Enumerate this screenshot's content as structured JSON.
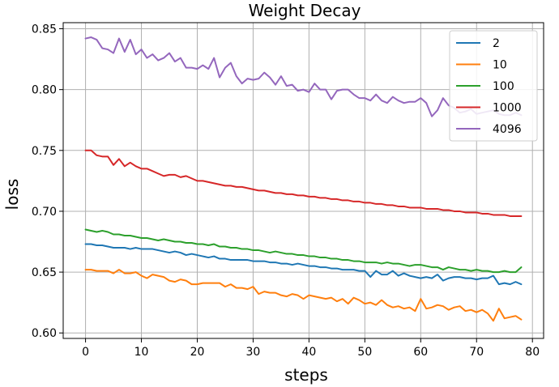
{
  "chart_data": {
    "type": "line",
    "title": "Weight Decay",
    "xlabel": "steps",
    "ylabel": "loss",
    "xlim": [
      -4,
      82
    ],
    "ylim": [
      0.5955,
      0.855
    ],
    "xticks": [
      0,
      10,
      20,
      30,
      40,
      50,
      60,
      70,
      80
    ],
    "yticks": [
      0.6,
      0.65,
      0.7,
      0.75,
      0.8,
      0.85
    ],
    "ytick_labels": [
      "0.60",
      "0.65",
      "0.70",
      "0.75",
      "0.80",
      "0.85"
    ],
    "grid": true,
    "legend_position": "top-right",
    "series": [
      {
        "name": "2",
        "color": "#1f77b4",
        "values": [
          0.673,
          0.673,
          0.672,
          0.672,
          0.671,
          0.67,
          0.67,
          0.67,
          0.669,
          0.67,
          0.669,
          0.669,
          0.669,
          0.668,
          0.667,
          0.666,
          0.667,
          0.666,
          0.664,
          0.665,
          0.664,
          0.663,
          0.662,
          0.663,
          0.661,
          0.661,
          0.66,
          0.66,
          0.66,
          0.66,
          0.659,
          0.659,
          0.659,
          0.658,
          0.658,
          0.657,
          0.657,
          0.656,
          0.657,
          0.656,
          0.655,
          0.655,
          0.654,
          0.654,
          0.653,
          0.653,
          0.652,
          0.652,
          0.652,
          0.651,
          0.651,
          0.646,
          0.651,
          0.648,
          0.648,
          0.651,
          0.647,
          0.649,
          0.647,
          0.646,
          0.645,
          0.646,
          0.645,
          0.648,
          0.643,
          0.645,
          0.646,
          0.646,
          0.645,
          0.645,
          0.644,
          0.645,
          0.645,
          0.647,
          0.64,
          0.641,
          0.64,
          0.642,
          0.64
        ]
      },
      {
        "name": "10",
        "color": "#ff7f0e",
        "values": [
          0.652,
          0.652,
          0.651,
          0.651,
          0.651,
          0.649,
          0.652,
          0.649,
          0.649,
          0.65,
          0.647,
          0.645,
          0.648,
          0.647,
          0.646,
          0.643,
          0.642,
          0.644,
          0.643,
          0.64,
          0.64,
          0.641,
          0.641,
          0.641,
          0.641,
          0.638,
          0.64,
          0.637,
          0.637,
          0.636,
          0.638,
          0.632,
          0.634,
          0.633,
          0.633,
          0.631,
          0.63,
          0.632,
          0.631,
          0.628,
          0.631,
          0.63,
          0.629,
          0.628,
          0.629,
          0.626,
          0.628,
          0.624,
          0.629,
          0.627,
          0.624,
          0.625,
          0.623,
          0.627,
          0.623,
          0.621,
          0.622,
          0.62,
          0.621,
          0.618,
          0.628,
          0.62,
          0.621,
          0.623,
          0.622,
          0.619,
          0.621,
          0.622,
          0.618,
          0.619,
          0.617,
          0.619,
          0.616,
          0.61,
          0.62,
          0.612,
          0.613,
          0.614,
          0.611
        ]
      },
      {
        "name": "100",
        "color": "#2ca02c",
        "values": [
          0.685,
          0.684,
          0.683,
          0.684,
          0.683,
          0.681,
          0.681,
          0.68,
          0.68,
          0.679,
          0.678,
          0.678,
          0.677,
          0.676,
          0.677,
          0.676,
          0.675,
          0.675,
          0.674,
          0.674,
          0.673,
          0.673,
          0.672,
          0.673,
          0.671,
          0.671,
          0.67,
          0.67,
          0.669,
          0.669,
          0.668,
          0.668,
          0.667,
          0.666,
          0.667,
          0.666,
          0.665,
          0.665,
          0.664,
          0.664,
          0.663,
          0.663,
          0.662,
          0.662,
          0.661,
          0.661,
          0.66,
          0.66,
          0.659,
          0.659,
          0.658,
          0.658,
          0.658,
          0.657,
          0.658,
          0.657,
          0.657,
          0.656,
          0.655,
          0.656,
          0.656,
          0.655,
          0.654,
          0.654,
          0.652,
          0.654,
          0.653,
          0.652,
          0.652,
          0.651,
          0.652,
          0.651,
          0.651,
          0.65,
          0.65,
          0.651,
          0.65,
          0.65,
          0.654
        ]
      },
      {
        "name": "1000",
        "color": "#d62728",
        "values": [
          0.75,
          0.75,
          0.746,
          0.745,
          0.745,
          0.738,
          0.743,
          0.737,
          0.74,
          0.737,
          0.735,
          0.735,
          0.733,
          0.731,
          0.729,
          0.73,
          0.73,
          0.728,
          0.729,
          0.727,
          0.725,
          0.725,
          0.724,
          0.723,
          0.722,
          0.721,
          0.721,
          0.72,
          0.72,
          0.719,
          0.718,
          0.717,
          0.717,
          0.716,
          0.715,
          0.715,
          0.714,
          0.714,
          0.713,
          0.713,
          0.712,
          0.712,
          0.711,
          0.711,
          0.71,
          0.71,
          0.709,
          0.709,
          0.708,
          0.708,
          0.707,
          0.707,
          0.706,
          0.706,
          0.705,
          0.705,
          0.704,
          0.704,
          0.703,
          0.703,
          0.703,
          0.702,
          0.702,
          0.702,
          0.701,
          0.701,
          0.7,
          0.7,
          0.699,
          0.699,
          0.699,
          0.698,
          0.698,
          0.697,
          0.697,
          0.697,
          0.696,
          0.696,
          0.696
        ]
      },
      {
        "name": "4096",
        "color": "#9467bd",
        "values": [
          0.842,
          0.843,
          0.841,
          0.834,
          0.833,
          0.83,
          0.842,
          0.831,
          0.841,
          0.829,
          0.833,
          0.826,
          0.829,
          0.824,
          0.826,
          0.83,
          0.823,
          0.826,
          0.818,
          0.818,
          0.817,
          0.82,
          0.817,
          0.826,
          0.81,
          0.818,
          0.822,
          0.811,
          0.805,
          0.809,
          0.808,
          0.809,
          0.814,
          0.81,
          0.804,
          0.811,
          0.803,
          0.804,
          0.799,
          0.8,
          0.798,
          0.805,
          0.8,
          0.8,
          0.792,
          0.799,
          0.8,
          0.8,
          0.796,
          0.793,
          0.793,
          0.791,
          0.796,
          0.791,
          0.789,
          0.794,
          0.791,
          0.789,
          0.79,
          0.79,
          0.793,
          0.789,
          0.778,
          0.783,
          0.793,
          0.787,
          0.785,
          0.781,
          0.782,
          0.784,
          0.78,
          0.781,
          0.782,
          0.783,
          0.78,
          0.779,
          0.779,
          0.781,
          0.779
        ]
      }
    ]
  }
}
